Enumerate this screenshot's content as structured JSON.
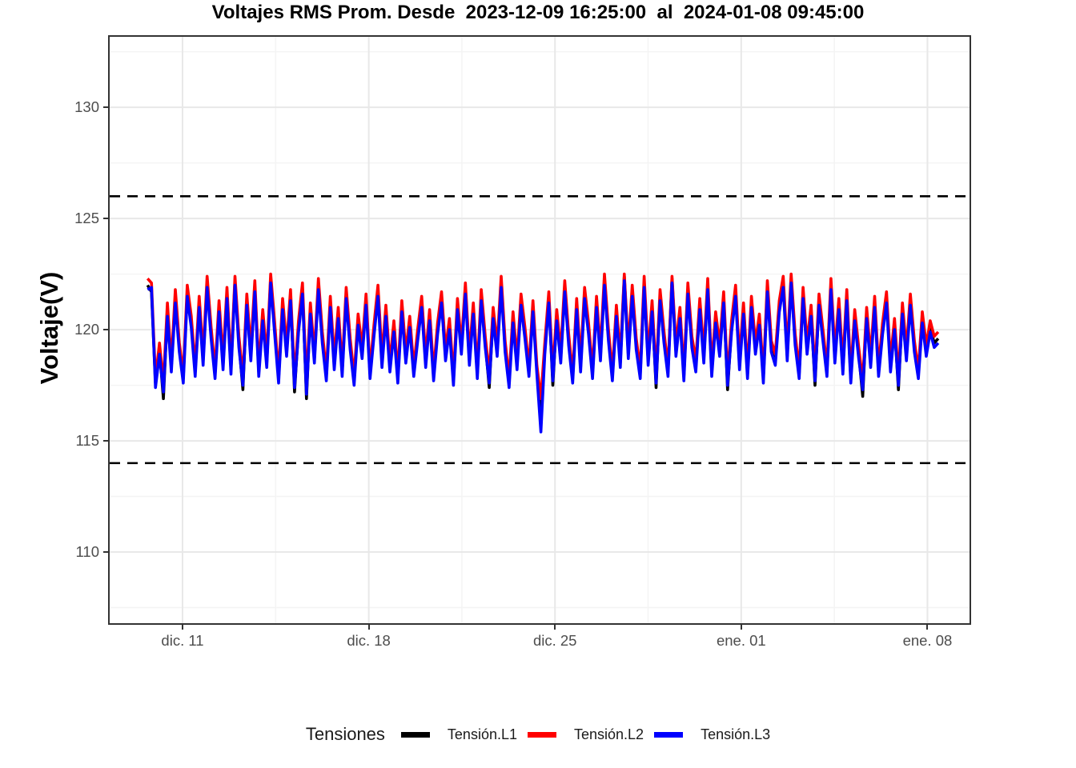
{
  "figure": {
    "background": "#FFFFFF",
    "panel_border_color": "#333333",
    "grid_major_color": "#E8E8E8",
    "grid_minor_color": "#F4F4F4",
    "tick_color": "#333333",
    "tick_label_color": "#4D4D4D"
  },
  "legend": {
    "title": "Tensiones",
    "position": "bottom"
  },
  "chart_data": {
    "type": "line",
    "title": "Voltajes RMS Prom. Desde  2023-12-09 16:25:00  al  2024-01-08 09:45:00",
    "xlabel": "",
    "ylabel": "Voltaje(V)",
    "x_start": "2023-12-09 16:25:00",
    "x_end": "2024-01-08 09:45:00",
    "x_span_days": 29.72,
    "x_tick_labels": [
      "dic. 11",
      "dic. 18",
      "dic. 25",
      "ene. 01",
      "ene. 08"
    ],
    "x_tick_days": [
      1.316,
      8.316,
      15.316,
      22.316,
      29.316
    ],
    "y_tick_labels": [
      "130",
      "125",
      "120",
      "115",
      "110"
    ],
    "y_ticks": [
      130,
      125,
      120,
      115,
      110
    ],
    "y_minor_ticks": [
      132.5,
      127.5,
      122.5,
      117.5,
      112.5,
      107.5
    ],
    "ylim": [
      106.8,
      133.17
    ],
    "grid": true,
    "limit_lines": {
      "style": "dashed",
      "color": "#000000",
      "values": [
        126,
        114
      ]
    },
    "series": [
      {
        "name": "Tensión.L1",
        "color": "#000000",
        "values": [
          122.0,
          121.7,
          117.6,
          119.1,
          116.9,
          120.8,
          118.3,
          121.4,
          119.2,
          117.8,
          121.7,
          120.3,
          118.1,
          121.2,
          118.6,
          122.1,
          119.8,
          118.0,
          121.0,
          118.4,
          121.6,
          118.2,
          122.2,
          119.4,
          117.3,
          121.3,
          118.8,
          121.9,
          118.1,
          120.6,
          118.5,
          122.3,
          120.0,
          117.8,
          121.1,
          119.0,
          121.5,
          117.2,
          120.1,
          121.8,
          116.9,
          120.9,
          118.7,
          122.0,
          119.6,
          117.9,
          121.2,
          118.4,
          120.7,
          118.1,
          121.6,
          119.3,
          117.7,
          120.4,
          118.9,
          121.3,
          118.0,
          119.9,
          121.7,
          118.5,
          120.8,
          118.3,
          120.1,
          117.8,
          121.0,
          118.7,
          120.3,
          118.1,
          119.7,
          121.2,
          118.5,
          120.6,
          117.9,
          120.0,
          121.4,
          118.8,
          120.2,
          117.7,
          121.1,
          119.1,
          121.8,
          118.6,
          120.9,
          118.0,
          121.5,
          119.4,
          117.4,
          120.7,
          119.0,
          122.1,
          119.2,
          117.6,
          120.5,
          118.4,
          121.3,
          119.8,
          118.1,
          121.0,
          118.2,
          115.9,
          119.1,
          121.4,
          117.5,
          120.6,
          118.7,
          121.9,
          119.5,
          117.8,
          121.1,
          118.3,
          121.6,
          120.0,
          118.0,
          121.2,
          118.8,
          122.2,
          119.7,
          117.9,
          120.8,
          118.5,
          122.4,
          118.9,
          121.7,
          119.3,
          118.0,
          122.1,
          118.6,
          121.0,
          117.4,
          121.5,
          119.6,
          118.1,
          122.3,
          119.0,
          120.7,
          117.9,
          121.8,
          119.4,
          118.3,
          121.1,
          118.7,
          122.0,
          118.1,
          120.5,
          119.0,
          121.4,
          117.3,
          120.1,
          121.7,
          118.4,
          120.9,
          118.0,
          121.2,
          119.1,
          120.4,
          117.8,
          121.9,
          119.2,
          118.6,
          121.0,
          122.1,
          118.8,
          122.3,
          119.5,
          118.0,
          121.6,
          119.1,
          120.8,
          117.5,
          121.3,
          119.7,
          118.1,
          122.0,
          118.7,
          121.1,
          118.2,
          121.5,
          117.8,
          120.6,
          118.9,
          117.0,
          120.7,
          118.5,
          121.2,
          118.1,
          120.0,
          121.4,
          118.3,
          120.2,
          117.3,
          120.9,
          118.8,
          121.3,
          119.2,
          118.0,
          120.5,
          119.0,
          120.1,
          119.4,
          119.6
        ]
      },
      {
        "name": "Tensión.L2",
        "color": "#FF0000",
        "values": [
          122.3,
          122.1,
          117.8,
          119.4,
          117.6,
          121.2,
          118.5,
          121.8,
          119.4,
          118.0,
          122.0,
          120.6,
          118.3,
          121.5,
          118.9,
          122.4,
          120.1,
          118.2,
          121.3,
          118.7,
          121.9,
          118.4,
          122.4,
          119.7,
          117.9,
          121.6,
          119.1,
          122.2,
          118.3,
          120.9,
          118.8,
          122.5,
          120.3,
          118.0,
          121.4,
          119.3,
          121.8,
          117.8,
          120.4,
          122.1,
          117.6,
          121.2,
          118.9,
          122.3,
          119.9,
          118.1,
          121.5,
          118.7,
          121.0,
          118.3,
          121.9,
          119.6,
          117.9,
          120.7,
          119.2,
          121.6,
          118.2,
          120.2,
          122.0,
          118.8,
          121.1,
          118.5,
          120.4,
          118.0,
          121.3,
          119.0,
          120.6,
          118.3,
          120.0,
          121.5,
          118.8,
          120.9,
          118.1,
          120.3,
          121.7,
          119.1,
          120.5,
          117.9,
          121.4,
          119.3,
          122.1,
          118.9,
          121.2,
          118.2,
          121.8,
          119.7,
          118.0,
          121.0,
          119.3,
          122.4,
          119.5,
          117.8,
          120.8,
          118.7,
          121.6,
          120.1,
          118.3,
          121.3,
          118.4,
          116.9,
          119.4,
          121.7,
          118.1,
          120.9,
          119.0,
          122.2,
          119.8,
          118.0,
          121.4,
          118.6,
          121.9,
          120.3,
          118.2,
          121.5,
          119.1,
          122.5,
          120.0,
          118.1,
          121.1,
          118.8,
          122.5,
          119.2,
          122.0,
          119.6,
          118.2,
          122.4,
          118.9,
          121.3,
          118.0,
          121.8,
          119.9,
          118.3,
          122.4,
          119.3,
          121.0,
          118.1,
          122.1,
          119.7,
          118.6,
          121.4,
          119.0,
          122.3,
          118.3,
          120.8,
          119.3,
          121.7,
          117.9,
          120.4,
          122.0,
          118.7,
          121.2,
          118.2,
          121.5,
          119.4,
          120.7,
          118.0,
          122.2,
          119.5,
          118.9,
          121.3,
          122.4,
          119.1,
          122.5,
          119.8,
          118.2,
          121.9,
          119.4,
          121.1,
          118.1,
          121.6,
          120.0,
          118.3,
          122.3,
          119.0,
          121.4,
          118.5,
          121.8,
          118.0,
          120.9,
          119.2,
          117.7,
          121.0,
          118.8,
          121.5,
          118.3,
          120.3,
          121.7,
          118.6,
          120.5,
          117.9,
          121.2,
          119.1,
          121.6,
          119.5,
          118.2,
          120.8,
          119.3,
          120.4,
          119.7,
          119.9
        ]
      },
      {
        "name": "Tensión.L3",
        "color": "#0000FF",
        "values": [
          121.8,
          121.9,
          117.4,
          118.9,
          117.2,
          120.6,
          118.1,
          121.2,
          119.0,
          117.6,
          121.5,
          120.1,
          117.9,
          121.0,
          118.4,
          121.9,
          119.6,
          117.8,
          120.8,
          118.2,
          121.4,
          118.0,
          122.0,
          119.2,
          117.5,
          121.1,
          118.6,
          121.7,
          117.9,
          120.4,
          118.3,
          122.1,
          119.8,
          117.6,
          120.9,
          118.8,
          121.3,
          117.4,
          119.9,
          121.6,
          117.1,
          120.7,
          118.5,
          121.8,
          119.4,
          117.7,
          121.0,
          118.2,
          120.5,
          117.9,
          121.4,
          119.1,
          117.5,
          120.2,
          118.7,
          121.1,
          117.8,
          119.7,
          121.5,
          118.3,
          120.6,
          118.1,
          119.9,
          117.6,
          120.8,
          118.5,
          120.1,
          117.9,
          119.5,
          121.0,
          118.3,
          120.4,
          117.7,
          119.8,
          121.2,
          118.6,
          120.0,
          117.5,
          120.9,
          118.9,
          121.6,
          118.4,
          120.7,
          117.8,
          121.3,
          119.2,
          117.6,
          120.5,
          118.8,
          121.9,
          119.0,
          117.4,
          120.3,
          118.2,
          121.1,
          119.6,
          117.9,
          120.8,
          118.0,
          115.4,
          118.9,
          121.2,
          117.7,
          120.4,
          118.5,
          121.7,
          119.3,
          117.6,
          120.9,
          118.1,
          121.4,
          119.8,
          117.8,
          121.0,
          118.6,
          122.0,
          119.5,
          117.7,
          120.6,
          118.3,
          122.2,
          118.7,
          121.5,
          119.1,
          117.8,
          121.9,
          118.4,
          120.8,
          117.6,
          121.3,
          119.4,
          117.9,
          122.1,
          118.8,
          120.5,
          117.7,
          121.6,
          119.2,
          118.1,
          120.9,
          118.5,
          121.8,
          117.9,
          120.3,
          118.8,
          121.2,
          117.5,
          119.9,
          121.5,
          118.2,
          120.7,
          117.8,
          121.0,
          118.9,
          120.2,
          117.6,
          121.7,
          119.0,
          118.4,
          120.8,
          121.9,
          118.6,
          122.1,
          119.3,
          117.8,
          121.4,
          118.9,
          120.6,
          117.7,
          121.1,
          119.5,
          117.9,
          121.8,
          118.5,
          120.9,
          118.0,
          121.3,
          117.6,
          120.4,
          118.7,
          117.3,
          120.5,
          118.3,
          121.0,
          117.9,
          119.8,
          121.2,
          118.1,
          120.0,
          117.5,
          120.7,
          118.6,
          121.1,
          119.0,
          117.8,
          120.3,
          118.8,
          119.9,
          119.2,
          119.4
        ]
      }
    ]
  }
}
